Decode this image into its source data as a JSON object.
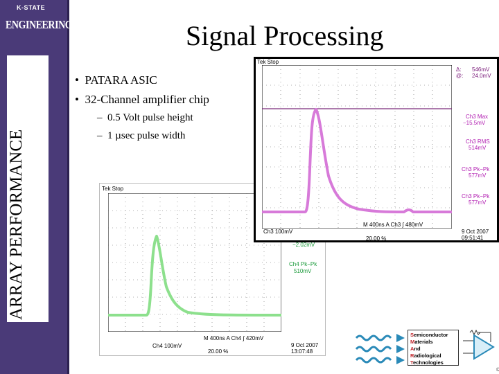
{
  "sidebar": {
    "logo_top": "K-STATE",
    "logo_main": "ENGINEERING.",
    "vertical_title": "ARRAY PERFORMANCE"
  },
  "slide": {
    "title": "Signal Processing",
    "bullets": [
      {
        "marker": "•",
        "text": "PATARA ASIC"
      },
      {
        "marker": "•",
        "text": "32-Channel amplifier chip"
      }
    ],
    "sub_bullets": [
      {
        "marker": "–",
        "text": "0.5 Volt pulse height"
      },
      {
        "marker": "–",
        "text": "1 µsec pulse width"
      }
    ]
  },
  "scope_top": {
    "header": "Tek Stop",
    "trace_color": "#d77ad9",
    "readouts": [
      {
        "label": "Δ:",
        "value": "546mV"
      },
      {
        "label": "@:",
        "value": "24.0mV"
      }
    ],
    "measurements": [
      {
        "label": "Ch3 Max",
        "value": "−15.5mV"
      },
      {
        "label": "Ch3 RMS",
        "value": "514mV"
      },
      {
        "label": "Ch3 Pk−Pk",
        "value": "577mV"
      },
      {
        "label": "Ch3 Pk−Pk",
        "value": "577mV"
      }
    ],
    "scale": "Ch3  100mV",
    "timebase": "M 400ns  A  Ch3  ∫  480mV",
    "trigger": "20.00 %",
    "date": "9 Oct  2007",
    "time": "09:51:41"
  },
  "scope_bottom": {
    "header": "Tek Stop",
    "trace_color": "#8de08d",
    "measurements_partial": [
      {
        "label": "",
        "value": "−2.02mV"
      },
      {
        "label": "Ch4 Pk−Pk",
        "value": "510mV"
      }
    ],
    "scale": "Ch4  100mV",
    "timebase": "M 400ns  A  Ch4  ∫  420mV",
    "trigger": "20.00 %",
    "date": "9 Oct  2007",
    "time": "13:07:48"
  },
  "footer_logo": {
    "line1_cap": "S",
    "line1": "emiconductor",
    "line2_cap": "M",
    "line2": "aterials",
    "line3_cap": "A",
    "line3": "nd",
    "line4_cap": "R",
    "line4": "adiological",
    "line5_cap": "T",
    "line5": "echnologies"
  }
}
